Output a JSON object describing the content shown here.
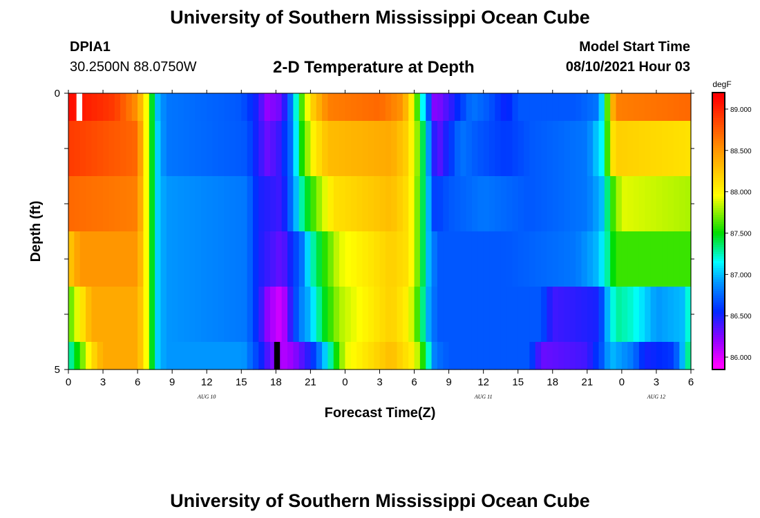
{
  "header": {
    "title": "University of Southern Mississippi Ocean Cube",
    "station": "DPIA1",
    "coordinates": "30.2500N  88.0750W",
    "subtitle": "2-D Temperature at Depth",
    "model_start_label": "Model Start Time",
    "model_start_value": "08/10/2021 Hour 03"
  },
  "footer": {
    "title": "University of Southern Mississippi Ocean Cube"
  },
  "chart_data": {
    "type": "heatmap",
    "title": "2-D Temperature at Depth",
    "xlabel": "Forecast Time(Z)",
    "ylabel": "Depth (ft)",
    "units": "degF",
    "x_hours": [
      0,
      54
    ],
    "x_ticks": [
      "0",
      "3",
      "6",
      "9",
      "12",
      "15",
      "18",
      "21",
      "0",
      "3",
      "6",
      "9",
      "12",
      "15",
      "18",
      "21",
      "0",
      "3",
      "6"
    ],
    "date_labels": [
      {
        "text": "AUG  10",
        "hour": 12
      },
      {
        "text": "AUG  11",
        "hour": 36
      },
      {
        "text": "AUG  12",
        "hour": 51
      }
    ],
    "y_ticks": [
      {
        "value": 0,
        "label": "0"
      },
      {
        "value": 1,
        "label": ""
      },
      {
        "value": 2,
        "label": ""
      },
      {
        "value": 3,
        "label": ""
      },
      {
        "value": 4,
        "label": ""
      },
      {
        "value": 5,
        "label": "5"
      }
    ],
    "depth_range": [
      0,
      5
    ],
    "colorbar": {
      "min": 85.85,
      "max": 89.2,
      "ticks": [
        "86.000",
        "86.500",
        "87.000",
        "87.500",
        "88.000",
        "88.500",
        "89.000"
      ],
      "tick_values": [
        86.0,
        86.5,
        87.0,
        87.5,
        88.0,
        88.5,
        89.0
      ]
    },
    "depth_bins": [
      {
        "top": 0,
        "bottom": 0.5
      },
      {
        "top": 0.5,
        "bottom": 1.5
      },
      {
        "top": 1.5,
        "bottom": 2.5
      },
      {
        "top": 2.5,
        "bottom": 3.5
      },
      {
        "top": 3.5,
        "bottom": 4.5
      },
      {
        "top": 4.5,
        "bottom": 5
      }
    ],
    "rows": [
      {
        "keypoints": [
          [
            0,
            89.1
          ],
          [
            4,
            88.9
          ],
          [
            6,
            88.5
          ],
          [
            6.7,
            88.0
          ],
          [
            7.2,
            87.5
          ],
          [
            7.7,
            87.0
          ],
          [
            8.5,
            86.8
          ],
          [
            15,
            86.7
          ],
          [
            16.3,
            86.5
          ],
          [
            17.2,
            86.2
          ],
          [
            18.5,
            86.3
          ],
          [
            19.3,
            86.8
          ],
          [
            20.2,
            87.6
          ],
          [
            21.2,
            88.2
          ],
          [
            22.5,
            88.6
          ],
          [
            27,
            88.7
          ],
          [
            29,
            88.5
          ],
          [
            29.8,
            88.0
          ],
          [
            30.4,
            87.5
          ],
          [
            31,
            86.9
          ],
          [
            31.8,
            86.2
          ],
          [
            33,
            86.4
          ],
          [
            35,
            86.8
          ],
          [
            36.5,
            86.7
          ],
          [
            38,
            86.5
          ],
          [
            39,
            86.7
          ],
          [
            44,
            86.7
          ],
          [
            46,
            86.8
          ],
          [
            46.5,
            87.3
          ],
          [
            47,
            88.0
          ],
          [
            47.4,
            88.6
          ],
          [
            54,
            88.7
          ]
        ]
      },
      {
        "keypoints": [
          [
            0,
            88.9
          ],
          [
            6,
            88.7
          ],
          [
            6.7,
            88.0
          ],
          [
            7.2,
            87.5
          ],
          [
            7.8,
            87.0
          ],
          [
            8.5,
            86.8
          ],
          [
            15.5,
            86.7
          ],
          [
            16.3,
            86.5
          ],
          [
            17.2,
            86.3
          ],
          [
            18.2,
            86.4
          ],
          [
            19.4,
            86.8
          ],
          [
            20.2,
            87.5
          ],
          [
            21.2,
            88.0
          ],
          [
            22.5,
            88.3
          ],
          [
            28,
            88.4
          ],
          [
            29.3,
            88.2
          ],
          [
            30.2,
            87.8
          ],
          [
            31,
            87.2
          ],
          [
            31.5,
            86.6
          ],
          [
            32,
            86.3
          ],
          [
            32.8,
            86.5
          ],
          [
            34,
            86.8
          ],
          [
            35.5,
            86.7
          ],
          [
            38,
            86.6
          ],
          [
            40,
            86.7
          ],
          [
            45,
            86.8
          ],
          [
            46.5,
            87.2
          ],
          [
            47,
            88.0
          ],
          [
            47.5,
            88.2
          ],
          [
            54,
            88.1
          ]
        ]
      },
      {
        "keypoints": [
          [
            0,
            88.7
          ],
          [
            6,
            88.6
          ],
          [
            6.7,
            88.0
          ],
          [
            7.2,
            87.5
          ],
          [
            7.8,
            87.0
          ],
          [
            8.5,
            86.9
          ],
          [
            15.5,
            86.8
          ],
          [
            16.5,
            86.5
          ],
          [
            18.5,
            86.4
          ],
          [
            19.6,
            86.9
          ],
          [
            20.3,
            87.3
          ],
          [
            21.5,
            87.7
          ],
          [
            23,
            88.1
          ],
          [
            28,
            88.3
          ],
          [
            29.5,
            88.1
          ],
          [
            30.5,
            87.6
          ],
          [
            31.2,
            87.0
          ],
          [
            31.8,
            86.6
          ],
          [
            33,
            86.7
          ],
          [
            36,
            86.8
          ],
          [
            40,
            86.7
          ],
          [
            45,
            86.8
          ],
          [
            46.3,
            87.0
          ],
          [
            47,
            87.5
          ],
          [
            48,
            87.9
          ],
          [
            54,
            87.8
          ]
        ]
      },
      {
        "keypoints": [
          [
            0,
            88.2
          ],
          [
            1,
            88.5
          ],
          [
            6,
            88.5
          ],
          [
            6.7,
            88.0
          ],
          [
            7.2,
            87.5
          ],
          [
            7.8,
            87.0
          ],
          [
            8.5,
            86.9
          ],
          [
            15.5,
            86.8
          ],
          [
            16.5,
            86.5
          ],
          [
            18.5,
            86.3
          ],
          [
            20.3,
            86.8
          ],
          [
            21,
            87.2
          ],
          [
            22,
            87.5
          ],
          [
            23.5,
            87.9
          ],
          [
            28,
            88.2
          ],
          [
            29.5,
            88.1
          ],
          [
            30.5,
            87.6
          ],
          [
            31.2,
            87.0
          ],
          [
            32,
            86.7
          ],
          [
            38,
            86.7
          ],
          [
            44,
            86.8
          ],
          [
            46,
            87.0
          ],
          [
            46.8,
            87.3
          ],
          [
            47.5,
            87.6
          ],
          [
            54,
            87.6
          ]
        ]
      },
      {
        "keypoints": [
          [
            0,
            87.6
          ],
          [
            1,
            88.0
          ],
          [
            2,
            88.4
          ],
          [
            6,
            88.4
          ],
          [
            6.7,
            88.0
          ],
          [
            7.2,
            87.5
          ],
          [
            7.8,
            87.0
          ],
          [
            8.5,
            86.9
          ],
          [
            15.5,
            86.8
          ],
          [
            16.5,
            86.5
          ],
          [
            17.3,
            86.2
          ],
          [
            18.5,
            86.0
          ],
          [
            19.2,
            86.4
          ],
          [
            20,
            86.8
          ],
          [
            21,
            87.0
          ],
          [
            22,
            87.4
          ],
          [
            23.5,
            87.8
          ],
          [
            28,
            88.2
          ],
          [
            29.5,
            88.0
          ],
          [
            30.5,
            87.5
          ],
          [
            31.3,
            86.9
          ],
          [
            32,
            86.7
          ],
          [
            41,
            86.7
          ],
          [
            42,
            86.4
          ],
          [
            46,
            86.5
          ],
          [
            46.8,
            87.0
          ],
          [
            47.5,
            87.3
          ],
          [
            49,
            87.2
          ],
          [
            51,
            86.9
          ],
          [
            53.5,
            87.0
          ],
          [
            54,
            87.4
          ]
        ]
      },
      {
        "keypoints": [
          [
            0,
            87.2
          ],
          [
            1,
            87.6
          ],
          [
            2,
            88.1
          ],
          [
            3,
            88.4
          ],
          [
            6,
            88.4
          ],
          [
            6.7,
            88.0
          ],
          [
            7.2,
            87.5
          ],
          [
            7.8,
            87.0
          ],
          [
            8.5,
            86.9
          ],
          [
            15.2,
            86.9
          ],
          [
            16.5,
            86.6
          ],
          [
            17.5,
            86.3
          ],
          [
            18.5,
            86.1
          ],
          [
            19.5,
            86.2
          ],
          [
            21,
            86.5
          ],
          [
            22,
            86.9
          ],
          [
            23,
            87.4
          ],
          [
            24,
            87.9
          ],
          [
            28,
            88.3
          ],
          [
            30,
            88.0
          ],
          [
            31,
            87.4
          ],
          [
            31.8,
            86.8
          ],
          [
            33,
            86.7
          ],
          [
            40,
            86.7
          ],
          [
            41,
            86.3
          ],
          [
            45,
            86.4
          ],
          [
            46.3,
            86.7
          ],
          [
            47,
            87.0
          ],
          [
            49,
            86.8
          ],
          [
            50,
            86.5
          ],
          [
            52.5,
            86.6
          ],
          [
            53.5,
            87.1
          ],
          [
            54,
            87.5
          ]
        ]
      }
    ],
    "legend_position": "right"
  }
}
